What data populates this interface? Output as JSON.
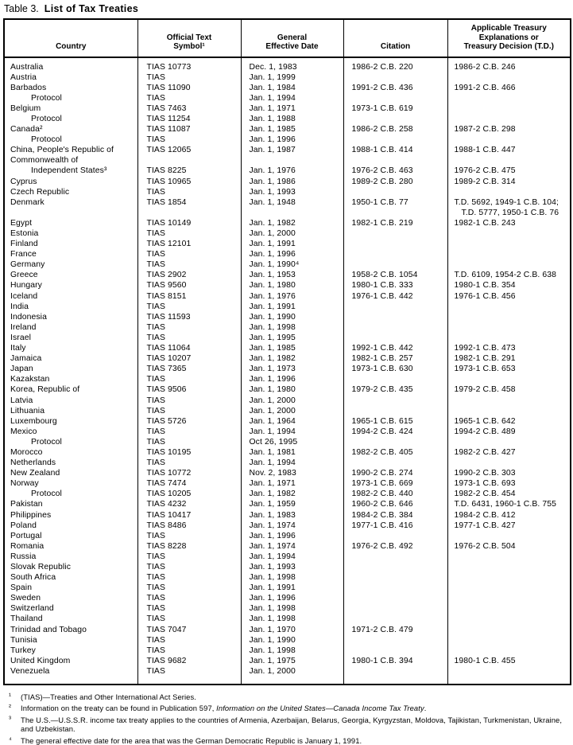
{
  "page": {
    "background": "#ffffff",
    "text_color": "#000000",
    "border_color": "#000000"
  },
  "title": {
    "prefix": "Table 3.",
    "main": "List of Tax Treaties"
  },
  "table": {
    "headers": [
      "Country",
      "Official Text\nSymbol¹",
      "General\nEffective Date",
      "Citation",
      "Applicable Treasury\nExplanations or\nTreasury Decision (T.D.)"
    ],
    "rows": [
      {
        "country": "Australia",
        "indent": 0,
        "symbol": "TIAS 10773",
        "date": "Dec. 1, 1983",
        "citation": "1986-2 C.B. 220",
        "td": "1986-2 C.B. 246"
      },
      {
        "country": "Austria",
        "indent": 0,
        "symbol": "TIAS",
        "date": "Jan. 1, 1999",
        "citation": "",
        "td": ""
      },
      {
        "country": "Barbados",
        "indent": 0,
        "symbol": "TIAS 11090",
        "date": "Jan. 1, 1984",
        "citation": "1991-2 C.B. 436",
        "td": "1991-2 C.B. 466"
      },
      {
        "country": "Protocol",
        "indent": 1,
        "symbol": "TIAS",
        "date": "Jan. 1, 1994",
        "citation": "",
        "td": ""
      },
      {
        "country": "Belgium",
        "indent": 0,
        "symbol": "TIAS 7463",
        "date": "Jan. 1, 1971",
        "citation": "1973-1 C.B. 619",
        "td": ""
      },
      {
        "country": "Protocol",
        "indent": 1,
        "symbol": "TIAS 11254",
        "date": "Jan. 1, 1988",
        "citation": "",
        "td": ""
      },
      {
        "country": "Canada²",
        "indent": 0,
        "symbol": "TIAS 11087",
        "date": "Jan. 1, 1985",
        "citation": "1986-2 C.B. 258",
        "td": "1987-2 C.B. 298"
      },
      {
        "country": "Protocol",
        "indent": 1,
        "symbol": "TIAS",
        "date": "Jan. 1, 1996",
        "citation": "",
        "td": ""
      },
      {
        "country": "China, People's Republic of",
        "indent": 0,
        "symbol": "TIAS 12065",
        "date": "Jan. 1, 1987",
        "citation": "1988-1 C.B. 414",
        "td": "1988-1 C.B. 447"
      },
      {
        "country": "Commonwealth of",
        "indent": 0,
        "symbol": "",
        "date": "",
        "citation": "",
        "td": ""
      },
      {
        "country": "Independent States³",
        "indent": 1,
        "symbol": "TIAS 8225",
        "date": "Jan. 1, 1976",
        "citation": "1976-2 C.B. 463",
        "td": "1976-2 C.B. 475"
      },
      {
        "country": "Cyprus",
        "indent": 0,
        "symbol": "TIAS 10965",
        "date": "Jan. 1, 1986",
        "citation": "1989-2 C.B. 280",
        "td": "1989-2 C.B. 314"
      },
      {
        "country": "Czech Republic",
        "indent": 0,
        "symbol": "TIAS",
        "date": "Jan. 1, 1993",
        "citation": "",
        "td": ""
      },
      {
        "country": "Denmark",
        "indent": 0,
        "symbol": "TIAS 1854",
        "date": "Jan. 1, 1948",
        "citation": "1950-1 C.B. 77",
        "td": "T.D. 5692, 1949-1 C.B. 104;\n   T.D. 5777, 1950-1 C.B. 76"
      },
      {
        "country": "Egypt",
        "indent": 0,
        "symbol": "TIAS 10149",
        "date": "Jan. 1, 1982",
        "citation": "1982-1 C.B. 219",
        "td": "1982-1 C.B. 243"
      },
      {
        "country": "Estonia",
        "indent": 0,
        "symbol": "TIAS",
        "date": "Jan. 1, 2000",
        "citation": "",
        "td": ""
      },
      {
        "country": "Finland",
        "indent": 0,
        "symbol": "TIAS 12101",
        "date": "Jan. 1, 1991",
        "citation": "",
        "td": ""
      },
      {
        "country": "France",
        "indent": 0,
        "symbol": "TIAS",
        "date": "Jan. 1, 1996",
        "citation": "",
        "td": ""
      },
      {
        "country": "Germany",
        "indent": 0,
        "symbol": "TIAS",
        "date": "Jan. 1, 1990⁴",
        "citation": "",
        "td": ""
      },
      {
        "country": "Greece",
        "indent": 0,
        "symbol": "TIAS 2902",
        "date": "Jan. 1, 1953",
        "citation": "1958-2 C.B. 1054",
        "td": "T.D. 6109, 1954-2 C.B. 638"
      },
      {
        "country": "Hungary",
        "indent": 0,
        "symbol": "TIAS 9560",
        "date": "Jan. 1, 1980",
        "citation": "1980-1 C.B. 333",
        "td": "1980-1 C.B. 354"
      },
      {
        "country": "Iceland",
        "indent": 0,
        "symbol": "TIAS 8151",
        "date": "Jan. 1, 1976",
        "citation": "1976-1 C.B. 442",
        "td": "1976-1 C.B. 456"
      },
      {
        "country": "India",
        "indent": 0,
        "symbol": "TIAS",
        "date": "Jan. 1, 1991",
        "citation": "",
        "td": ""
      },
      {
        "country": "Indonesia",
        "indent": 0,
        "symbol": "TIAS 11593",
        "date": "Jan. 1, 1990",
        "citation": "",
        "td": ""
      },
      {
        "country": "Ireland",
        "indent": 0,
        "symbol": "TIAS",
        "date": "Jan. 1, 1998",
        "citation": "",
        "td": ""
      },
      {
        "country": "Israel",
        "indent": 0,
        "symbol": "TIAS",
        "date": "Jan. 1, 1995",
        "citation": "",
        "td": ""
      },
      {
        "country": "Italy",
        "indent": 0,
        "symbol": "TIAS 11064",
        "date": "Jan. 1, 1985",
        "citation": "1992-1 C.B. 442",
        "td": "1992-1 C.B. 473"
      },
      {
        "country": "Jamaica",
        "indent": 0,
        "symbol": "TIAS 10207",
        "date": "Jan. 1, 1982",
        "citation": "1982-1 C.B. 257",
        "td": "1982-1 C.B. 291"
      },
      {
        "country": "Japan",
        "indent": 0,
        "symbol": "TIAS 7365",
        "date": "Jan. 1, 1973",
        "citation": "1973-1 C.B. 630",
        "td": "1973-1 C.B. 653"
      },
      {
        "country": "Kazakstan",
        "indent": 0,
        "symbol": "TIAS",
        "date": "Jan. 1, 1996",
        "citation": "",
        "td": ""
      },
      {
        "country": "Korea, Republic of",
        "indent": 0,
        "symbol": "TIAS 9506",
        "date": "Jan. 1, 1980",
        "citation": "1979-2 C.B. 435",
        "td": "1979-2 C.B. 458"
      },
      {
        "country": "Latvia",
        "indent": 0,
        "symbol": "TIAS",
        "date": "Jan. 1, 2000",
        "citation": "",
        "td": ""
      },
      {
        "country": "Lithuania",
        "indent": 0,
        "symbol": "TIAS",
        "date": "Jan. 1, 2000",
        "citation": "",
        "td": ""
      },
      {
        "country": "Luxembourg",
        "indent": 0,
        "symbol": "TIAS 5726",
        "date": "Jan. 1, 1964",
        "citation": "1965-1 C.B. 615",
        "td": "1965-1 C.B. 642"
      },
      {
        "country": "Mexico",
        "indent": 0,
        "symbol": "TIAS",
        "date": "Jan. 1, 1994",
        "citation": "1994-2 C.B. 424",
        "td": "1994-2 C.B. 489"
      },
      {
        "country": "Protocol",
        "indent": 1,
        "symbol": "TIAS",
        "date": "Oct 26, 1995",
        "citation": "",
        "td": ""
      },
      {
        "country": "Morocco",
        "indent": 0,
        "symbol": "TIAS 10195",
        "date": "Jan. 1, 1981",
        "citation": "1982-2 C.B. 405",
        "td": "1982-2 C.B. 427"
      },
      {
        "country": "Netherlands",
        "indent": 0,
        "symbol": "TIAS",
        "date": "Jan. 1, 1994",
        "citation": "",
        "td": ""
      },
      {
        "country": "New Zealand",
        "indent": 0,
        "symbol": "TIAS 10772",
        "date": "Nov. 2, 1983",
        "citation": "1990-2 C.B. 274",
        "td": "1990-2 C.B. 303"
      },
      {
        "country": "Norway",
        "indent": 0,
        "symbol": "TIAS 7474",
        "date": "Jan. 1, 1971",
        "citation": "1973-1 C.B. 669",
        "td": "1973-1 C.B. 693"
      },
      {
        "country": "Protocol",
        "indent": 1,
        "symbol": "TIAS 10205",
        "date": "Jan. 1, 1982",
        "citation": "1982-2 C.B. 440",
        "td": "1982-2 C.B. 454"
      },
      {
        "country": "Pakistan",
        "indent": 0,
        "symbol": "TIAS 4232",
        "date": "Jan. 1, 1959",
        "citation": "1960-2 C.B. 646",
        "td": "T.D. 6431, 1960-1 C.B. 755"
      },
      {
        "country": "Philippines",
        "indent": 0,
        "symbol": "TIAS 10417",
        "date": "Jan. 1, 1983",
        "citation": "1984-2 C.B. 384",
        "td": "1984-2 C.B. 412"
      },
      {
        "country": "Poland",
        "indent": 0,
        "symbol": "TIAS 8486",
        "date": "Jan. 1, 1974",
        "citation": "1977-1 C.B. 416",
        "td": "1977-1 C.B. 427"
      },
      {
        "country": "Portugal",
        "indent": 0,
        "symbol": "TIAS",
        "date": "Jan. 1, 1996",
        "citation": "",
        "td": ""
      },
      {
        "country": "Romania",
        "indent": 0,
        "symbol": "TIAS 8228",
        "date": "Jan. 1, 1974",
        "citation": "1976-2 C.B. 492",
        "td": "1976-2 C.B. 504"
      },
      {
        "country": "Russia",
        "indent": 0,
        "symbol": "TIAS",
        "date": "Jan. 1, 1994",
        "citation": "",
        "td": ""
      },
      {
        "country": "Slovak Republic",
        "indent": 0,
        "symbol": "TIAS",
        "date": "Jan. 1, 1993",
        "citation": "",
        "td": ""
      },
      {
        "country": "South Africa",
        "indent": 0,
        "symbol": "TIAS",
        "date": "Jan. 1, 1998",
        "citation": "",
        "td": ""
      },
      {
        "country": "Spain",
        "indent": 0,
        "symbol": "TIAS",
        "date": "Jan. 1, 1991",
        "citation": "",
        "td": ""
      },
      {
        "country": "Sweden",
        "indent": 0,
        "symbol": "TIAS",
        "date": "Jan. 1, 1996",
        "citation": "",
        "td": ""
      },
      {
        "country": "Switzerland",
        "indent": 0,
        "symbol": "TIAS",
        "date": "Jan. 1, 1998",
        "citation": "",
        "td": ""
      },
      {
        "country": "Thailand",
        "indent": 0,
        "symbol": "TIAS",
        "date": "Jan. 1, 1998",
        "citation": "",
        "td": ""
      },
      {
        "country": "Trinidad and Tobago",
        "indent": 0,
        "symbol": "TIAS 7047",
        "date": "Jan. 1, 1970",
        "citation": "1971-2 C.B. 479",
        "td": ""
      },
      {
        "country": "Tunisia",
        "indent": 0,
        "symbol": "TIAS",
        "date": "Jan. 1, 1990",
        "citation": "",
        "td": ""
      },
      {
        "country": "Turkey",
        "indent": 0,
        "symbol": "TIAS",
        "date": "Jan. 1, 1998",
        "citation": "",
        "td": ""
      },
      {
        "country": "United Kingdom",
        "indent": 0,
        "symbol": "TIAS 9682",
        "date": "Jan. 1, 1975",
        "citation": "1980-1 C.B. 394",
        "td": "1980-1 C.B. 455"
      },
      {
        "country": "Venezuela",
        "indent": 0,
        "symbol": "TIAS",
        "date": "Jan. 1, 2000",
        "citation": "",
        "td": ""
      }
    ]
  },
  "footnotes": [
    {
      "marker": "¹",
      "parts": [
        {
          "t": "(TIAS)—Treaties and Other International Act Series."
        }
      ]
    },
    {
      "marker": "²",
      "parts": [
        {
          "t": "Information on the treaty can be found in Publication 597, "
        },
        {
          "t": "Information on the United States—Canada Income Tax Treaty",
          "i": true
        },
        {
          "t": "."
        }
      ]
    },
    {
      "marker": "³",
      "parts": [
        {
          "t": "The U.S.—U.S.S.R. income tax treaty applies to the countries of Armenia, Azerbaijan, Belarus, Georgia, Kyrgyzstan, Moldova, Tajikistan, Turkmenistan, Ukraine, and Uzbekistan."
        }
      ]
    },
    {
      "marker": "⁴",
      "parts": [
        {
          "t": "The general effective date for the area that was the German Democratic Republic is January 1, 1991."
        }
      ]
    }
  ]
}
